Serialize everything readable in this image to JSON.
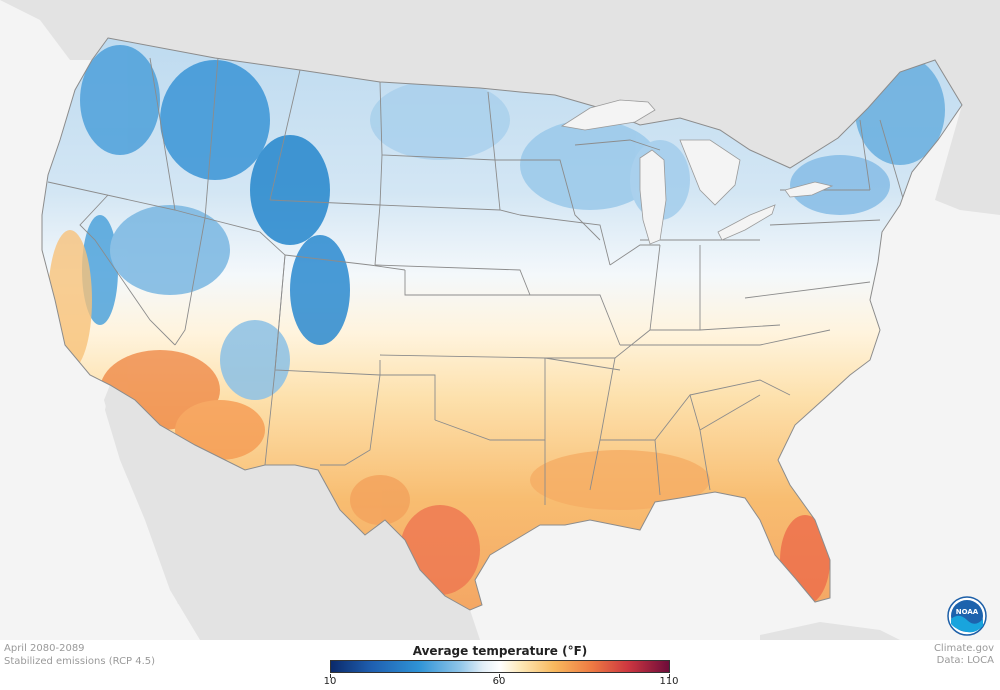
{
  "map": {
    "period": "April 2080-2089",
    "scenario": "Stabilized emissions (RCP 4.5)",
    "source": "Climate.gov",
    "data_source": "Data: LOCA",
    "logo_text": "NOAA"
  },
  "legend": {
    "title": "Average temperature (°F)",
    "min": "10",
    "mid": "60",
    "max": "110",
    "min_value": 10,
    "mid_value": 60,
    "max_value": 110
  },
  "colors": {
    "land_other": "#e3e3e3",
    "water": "#f4f4f4",
    "cold_strong": "#1e7ec7",
    "cold": "#7eb8e2",
    "cool": "#cfe3f2",
    "neutral": "#ffffff",
    "warm": "#fde3b0",
    "warm_strong": "#f7b567",
    "hot": "#f08a4e",
    "hottest": "#e4553f",
    "border": "#8c8c8c"
  }
}
